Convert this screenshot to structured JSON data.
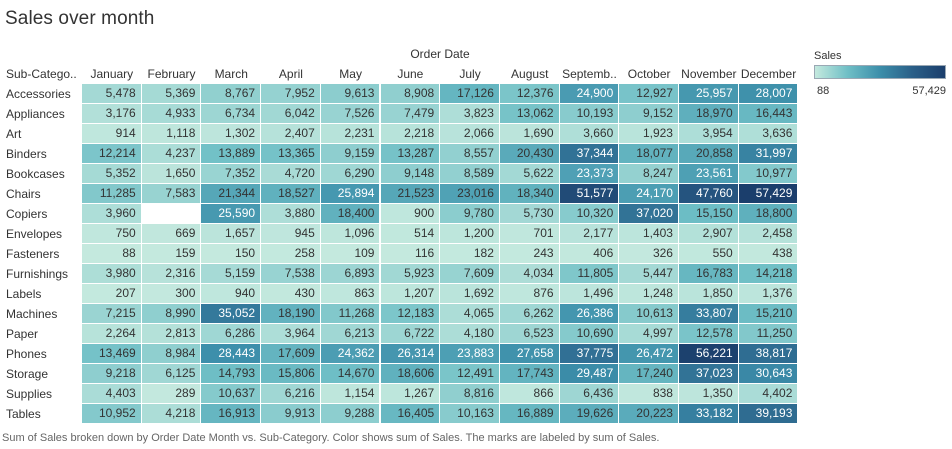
{
  "chart_data": {
    "type": "heatmap",
    "title": "Sales over month",
    "column_group_label": "Order Date",
    "row_header_label": "Sub-Catego..",
    "columns": [
      "January",
      "February",
      "March",
      "April",
      "May",
      "June",
      "July",
      "August",
      "Septemb..",
      "October",
      "November",
      "December"
    ],
    "rows": [
      "Accessories",
      "Appliances",
      "Art",
      "Binders",
      "Bookcases",
      "Chairs",
      "Copiers",
      "Envelopes",
      "Fasteners",
      "Furnishings",
      "Labels",
      "Machines",
      "Paper",
      "Phones",
      "Storage",
      "Supplies",
      "Tables"
    ],
    "values": [
      [
        5478,
        5369,
        8767,
        7952,
        9613,
        8908,
        17126,
        12376,
        24900,
        12927,
        25957,
        28007
      ],
      [
        3176,
        4933,
        6734,
        6042,
        7526,
        7479,
        3823,
        13062,
        10193,
        9152,
        18970,
        16443
      ],
      [
        914,
        1118,
        1302,
        2407,
        2231,
        2218,
        2066,
        1690,
        3660,
        1923,
        3954,
        3636
      ],
      [
        12214,
        4237,
        13889,
        13365,
        9159,
        13287,
        8557,
        20430,
        37344,
        18077,
        20858,
        31997
      ],
      [
        5352,
        1650,
        7352,
        4720,
        6290,
        9148,
        8589,
        5622,
        23373,
        8247,
        23561,
        10977
      ],
      [
        11285,
        7583,
        21344,
        18527,
        25894,
        21523,
        23016,
        18340,
        51577,
        24170,
        47760,
        57429
      ],
      [
        3960,
        null,
        25590,
        3880,
        18400,
        900,
        9780,
        5730,
        10320,
        37020,
        15150,
        18800
      ],
      [
        750,
        669,
        1657,
        945,
        1096,
        514,
        1200,
        701,
        2177,
        1403,
        2907,
        2458
      ],
      [
        88,
        159,
        150,
        258,
        109,
        116,
        182,
        243,
        406,
        326,
        550,
        438
      ],
      [
        3980,
        2316,
        5159,
        7538,
        6893,
        5923,
        7609,
        4034,
        11805,
        5447,
        16783,
        14218
      ],
      [
        207,
        300,
        940,
        430,
        863,
        1207,
        1692,
        876,
        1496,
        1248,
        1850,
        1376
      ],
      [
        7215,
        8990,
        35052,
        18190,
        11268,
        12183,
        4065,
        6262,
        26386,
        10613,
        33807,
        15210
      ],
      [
        2264,
        2813,
        6286,
        3964,
        6213,
        6722,
        4180,
        6523,
        10690,
        4997,
        12578,
        11250
      ],
      [
        13469,
        8984,
        28443,
        17609,
        24362,
        26314,
        23883,
        27658,
        37775,
        26472,
        56221,
        38817
      ],
      [
        9218,
        6125,
        14793,
        15806,
        14670,
        18606,
        12491,
        17743,
        29487,
        17240,
        37023,
        30643
      ],
      [
        4403,
        289,
        10637,
        6216,
        1154,
        1267,
        8816,
        866,
        6436,
        838,
        1350,
        4402
      ],
      [
        10952,
        4218,
        16913,
        9913,
        9288,
        16405,
        10163,
        16889,
        19626,
        20223,
        33182,
        39193
      ]
    ],
    "color_legend": {
      "title": "Sales",
      "min": 88,
      "max": 57429,
      "min_label": "88",
      "max_label": "57,429",
      "colors": [
        "#c4e9de",
        "#6fbfc6",
        "#3c8eaa",
        "#2a5f88",
        "#1b3e6c"
      ]
    },
    "caption": "Sum of Sales broken down by Order Date Month vs. Sub-Category.  Color shows sum of Sales.  The marks are labeled by sum of Sales."
  }
}
